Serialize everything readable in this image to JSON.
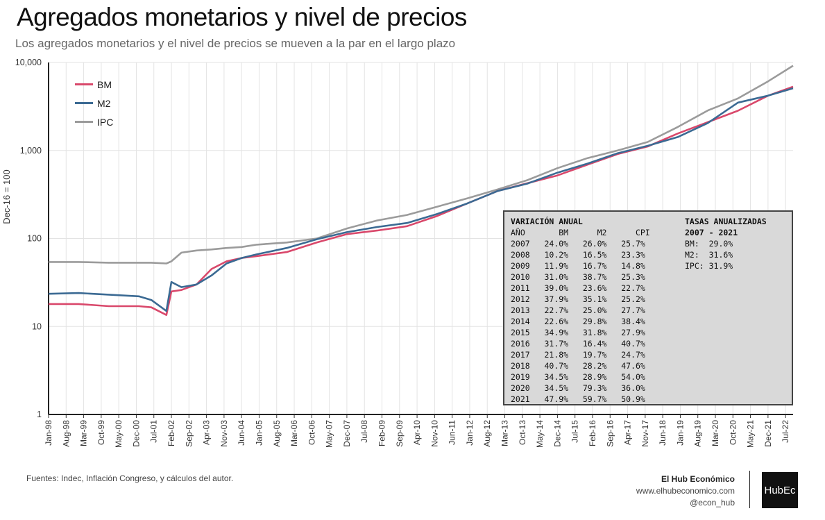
{
  "title": "Agregados monetarios y nivel de precios",
  "subtitle": "Los agregados monetarios y el nivel de precios se mueven a la par en el largo plazo",
  "source": "Fuentes: Indec, Inflación Congreso, y cálculos del autor.",
  "brand": {
    "name": "El Hub Económico",
    "url": "www.elhubeconomico.com",
    "handle": "@econ_hub",
    "logo": "HubEc"
  },
  "colors": {
    "BM": "#d9486b",
    "M2": "#3b6a93",
    "IPC": "#9b9b9b"
  },
  "chart_data": {
    "type": "line",
    "ylabel": "Dec-16 = 100",
    "yscale": "log",
    "ylim": [
      1,
      10000
    ],
    "yticks": [
      "1",
      "10",
      "100",
      "1,000",
      "10,000"
    ],
    "xticks": [
      "Jan-98",
      "Aug-98",
      "Mar-99",
      "Oct-99",
      "May-00",
      "Dec-00",
      "Jul-01",
      "Feb-02",
      "Sep-02",
      "Apr-03",
      "Nov-03",
      "Jun-04",
      "Jan-05",
      "Aug-05",
      "Mar-06",
      "Oct-06",
      "May-07",
      "Dec-07",
      "Jul-08",
      "Feb-09",
      "Sep-09",
      "Apr-10",
      "Nov-10",
      "Jun-11",
      "Jan-12",
      "Aug-12",
      "Mar-13",
      "Oct-13",
      "May-14",
      "Dec-14",
      "Jul-15",
      "Feb-16",
      "Sep-16",
      "Apr-17",
      "Nov-17",
      "Jun-18",
      "Jan-19",
      "Aug-19",
      "Mar-20",
      "Oct-20",
      "May-21",
      "Dec-21",
      "Jul-22"
    ],
    "x_range": [
      "1998-01",
      "2022-10"
    ],
    "legend": "top-left",
    "grid": true,
    "series": [
      {
        "name": "BM",
        "x": [
          "1998-01",
          "1999-01",
          "2000-01",
          "2001-01",
          "2001-06",
          "2001-12",
          "2002-02",
          "2002-06",
          "2002-12",
          "2003-06",
          "2003-12",
          "2004-06",
          "2004-12",
          "2005-12",
          "2006-12",
          "2007-12",
          "2008-12",
          "2009-12",
          "2010-12",
          "2011-12",
          "2012-12",
          "2013-12",
          "2014-12",
          "2015-12",
          "2016-12",
          "2017-12",
          "2018-12",
          "2019-12",
          "2020-12",
          "2021-12",
          "2022-10"
        ],
        "values": [
          18,
          18,
          17,
          17,
          16.5,
          13.5,
          25,
          26,
          30,
          45,
          55,
          60,
          63,
          70,
          90,
          112,
          123,
          138,
          180,
          250,
          345,
          425,
          520,
          690,
          910,
          1110,
          1560,
          2100,
          2830,
          4200,
          5300
        ]
      },
      {
        "name": "M2",
        "x": [
          "1998-01",
          "1999-01",
          "2000-01",
          "2001-01",
          "2001-06",
          "2001-12",
          "2002-02",
          "2002-06",
          "2002-12",
          "2003-06",
          "2003-12",
          "2004-06",
          "2004-12",
          "2005-12",
          "2006-12",
          "2007-12",
          "2008-12",
          "2009-12",
          "2010-12",
          "2011-12",
          "2012-12",
          "2013-12",
          "2014-12",
          "2015-12",
          "2016-12",
          "2017-12",
          "2018-12",
          "2019-12",
          "2020-12",
          "2021-12",
          "2022-10"
        ],
        "values": [
          23.5,
          24,
          23,
          22,
          20,
          15,
          32,
          28,
          30,
          38,
          52,
          60,
          66,
          78,
          98,
          118,
          135,
          150,
          190,
          250,
          345,
          420,
          560,
          710,
          930,
          1130,
          1420,
          2050,
          3500,
          4200,
          5100
        ]
      },
      {
        "name": "IPC",
        "x": [
          "1998-01",
          "1999-01",
          "2000-01",
          "2001-01",
          "2001-06",
          "2001-12",
          "2002-02",
          "2002-06",
          "2002-12",
          "2003-06",
          "2003-12",
          "2004-06",
          "2004-12",
          "2005-12",
          "2006-12",
          "2007-12",
          "2008-12",
          "2009-12",
          "2010-12",
          "2011-12",
          "2012-12",
          "2013-12",
          "2014-12",
          "2015-12",
          "2016-12",
          "2017-12",
          "2018-12",
          "2019-12",
          "2020-12",
          "2021-12",
          "2022-10"
        ],
        "values": [
          54,
          54,
          53,
          53,
          53,
          52,
          55,
          69,
          73,
          75,
          78,
          80,
          85,
          90,
          100,
          130,
          160,
          185,
          230,
          285,
          360,
          460,
          630,
          820,
          1000,
          1250,
          1850,
          2850,
          3900,
          6100,
          9200
        ]
      }
    ]
  },
  "table": {
    "title": "VARIACIÓN ANUAL",
    "headers": [
      "AÑO",
      "BM",
      "M2",
      "CPI"
    ],
    "rows": [
      [
        "2007",
        "24.0%",
        "26.0%",
        "25.7%"
      ],
      [
        "2008",
        "10.2%",
        "16.5%",
        "23.3%"
      ],
      [
        "2009",
        "11.9%",
        "16.7%",
        "14.8%"
      ],
      [
        "2010",
        "31.0%",
        "38.7%",
        "25.3%"
      ],
      [
        "2011",
        "39.0%",
        "23.6%",
        "22.7%"
      ],
      [
        "2012",
        "37.9%",
        "35.1%",
        "25.2%"
      ],
      [
        "2013",
        "22.7%",
        "25.0%",
        "27.7%"
      ],
      [
        "2014",
        "22.6%",
        "29.8%",
        "38.4%"
      ],
      [
        "2015",
        "34.9%",
        "31.8%",
        "27.9%"
      ],
      [
        "2016",
        "31.7%",
        "16.4%",
        "40.7%"
      ],
      [
        "2017",
        "21.8%",
        "19.7%",
        "24.7%"
      ],
      [
        "2018",
        "40.7%",
        "28.2%",
        "47.6%"
      ],
      [
        "2019",
        "34.5%",
        "28.9%",
        "54.0%"
      ],
      [
        "2020",
        "34.5%",
        "79.3%",
        "36.0%"
      ],
      [
        "2021",
        "47.9%",
        "59.7%",
        "50.9%"
      ]
    ],
    "rates_title": "TASAS ANUALIZADAS",
    "rates_period": "2007 - 2021",
    "rates": [
      [
        "BM:",
        "29.0%"
      ],
      [
        "M2:",
        "31.6%"
      ],
      [
        "IPC:",
        "31.9%"
      ]
    ]
  }
}
